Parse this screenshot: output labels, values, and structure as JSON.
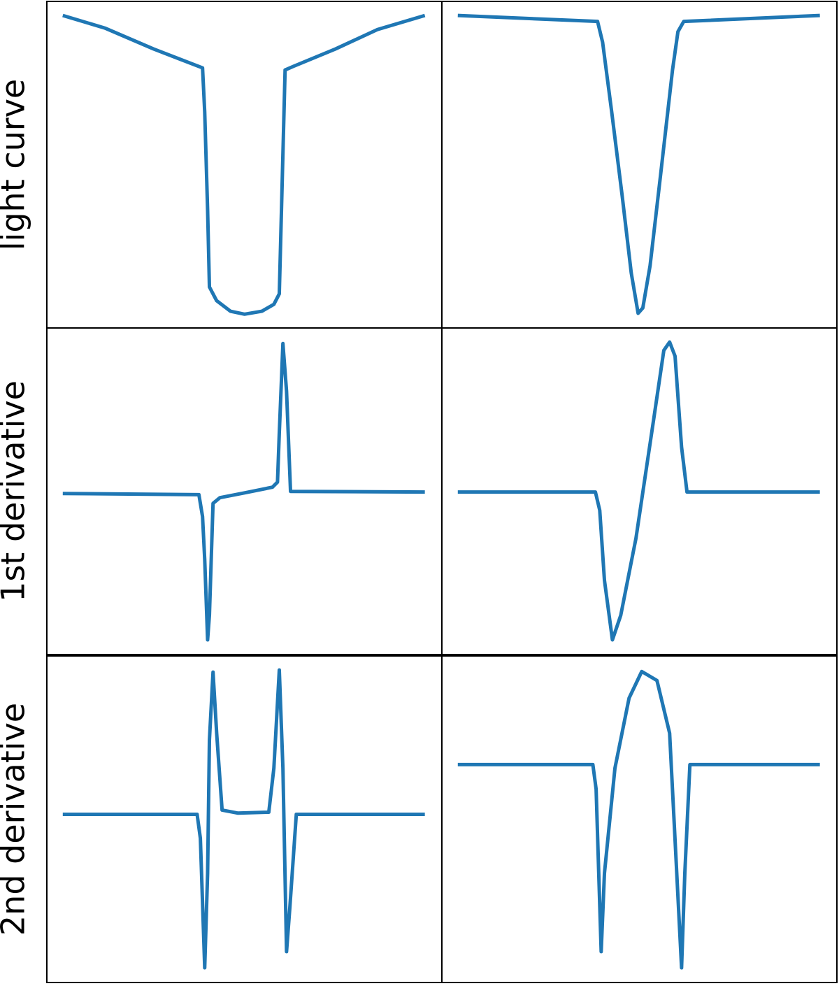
{
  "chart_data": [
    {
      "type": "line",
      "ylabel": "light curve",
      "xlim": [
        -4.4,
        104.7
      ],
      "ylim": [
        -0.044,
        1.047
      ],
      "x": [
        0,
        11.6,
        25.1,
        38.6,
        39.2,
        40,
        40.5,
        42.5,
        46.3,
        50.2,
        55,
        58.3,
        59.8,
        60.4,
        61.4,
        63.7,
        75.3,
        86.9,
        100
      ],
      "series": [
        {
          "color": "#1f77b4",
          "values": [
            1.0,
            0.958,
            0.888,
            0.825,
            0.678,
            0.35,
            0.093,
            0.047,
            0.012,
            0.002,
            0.012,
            0.035,
            0.07,
            0.35,
            0.818,
            0.83,
            0.888,
            0.953,
            1.0
          ]
        }
      ]
    },
    {
      "type": "line",
      "xlim": [
        -4.4,
        104.7
      ],
      "ylim": [
        -0.044,
        1.047
      ],
      "x": [
        0,
        38.6,
        40,
        42.5,
        45.4,
        47.9,
        49.8,
        51.1,
        53.1,
        56,
        59.3,
        60.8,
        62.4,
        100
      ],
      "series": [
        {
          "color": "#1f77b4",
          "values": [
            1.0,
            0.98,
            0.91,
            0.678,
            0.397,
            0.14,
            0.005,
            0.023,
            0.164,
            0.467,
            0.818,
            0.946,
            0.98,
            1.0
          ]
        }
      ]
    },
    {
      "type": "line",
      "ylabel": "1st derivative",
      "xlim": [
        -4.4,
        104.7
      ],
      "ylim": [
        -0.044,
        1.047
      ],
      "x": [
        0,
        37.6,
        38.6,
        39.2,
        40,
        40.5,
        41.5,
        43.4,
        50.2,
        57.9,
        59.3,
        59.8,
        60.8,
        61.8,
        62.9,
        100
      ],
      "series": [
        {
          "color": "#1f77b4",
          "values": [
            0.494,
            0.49,
            0.417,
            0.274,
            0.005,
            0.087,
            0.461,
            0.48,
            0.496,
            0.515,
            0.532,
            0.696,
            0.995,
            0.836,
            0.501,
            0.499
          ]
        }
      ]
    },
    {
      "type": "line",
      "xlim": [
        -4.4,
        104.7
      ],
      "ylim": [
        -0.044,
        1.047
      ],
      "x": [
        0,
        38,
        39.2,
        40.5,
        42.7,
        45,
        49.2,
        54.1,
        56.9,
        58.5,
        60,
        61.8,
        63.3,
        100
      ],
      "series": [
        {
          "color": "#1f77b4",
          "values": [
            0.499,
            0.499,
            0.438,
            0.204,
            0.005,
            0.087,
            0.344,
            0.742,
            0.972,
            1.0,
            0.953,
            0.649,
            0.499,
            0.499
          ]
        }
      ]
    },
    {
      "type": "line",
      "ylabel": "2nd derivative",
      "xlim": [
        -4.4,
        104.7
      ],
      "ylim": [
        -0.044,
        1.047
      ],
      "x": [
        0,
        37.1,
        38,
        39.2,
        40,
        40.5,
        41.5,
        42.5,
        44,
        48.3,
        56.9,
        58.3,
        59.8,
        60.8,
        61.8,
        62.7,
        64.5,
        100
      ],
      "series": [
        {
          "color": "#1f77b4",
          "values": [
            0.518,
            0.518,
            0.438,
            0.005,
            0.321,
            0.766,
            0.993,
            0.789,
            0.532,
            0.522,
            0.525,
            0.672,
            1.0,
            0.672,
            0.059,
            0.204,
            0.518,
            0.518
          ]
        }
      ]
    },
    {
      "type": "line",
      "xlim": [
        -4.4,
        104.7
      ],
      "ylim": [
        -0.044,
        1.047
      ],
      "x": [
        0,
        37.3,
        38.2,
        39.6,
        40.5,
        43.4,
        47.3,
        50.8,
        55,
        58.5,
        61.8,
        62.7,
        64.1,
        100
      ],
      "series": [
        {
          "color": "#1f77b4",
          "values": [
            0.684,
            0.684,
            0.602,
            0.059,
            0.321,
            0.672,
            0.906,
            0.995,
            0.965,
            0.789,
            0.005,
            0.321,
            0.684,
            0.684
          ]
        }
      ]
    }
  ]
}
